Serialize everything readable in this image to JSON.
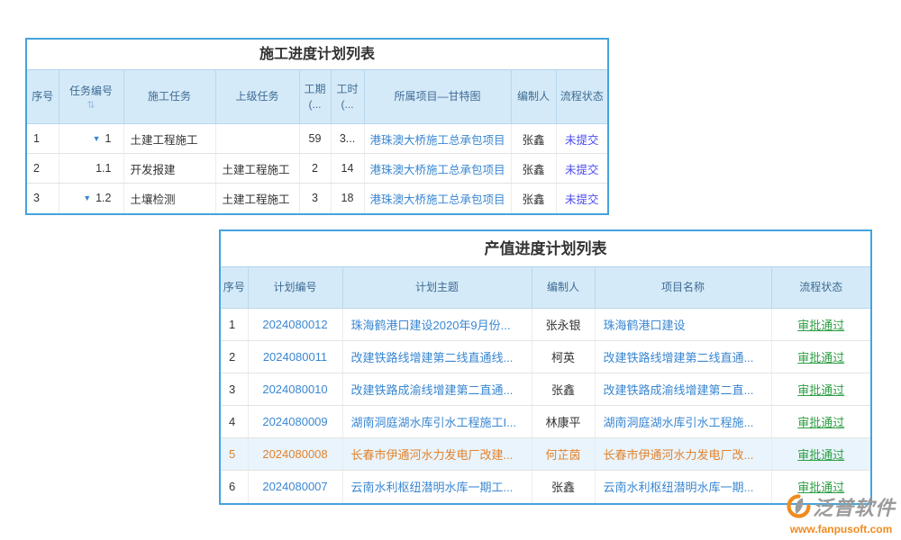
{
  "colors": {
    "border_blue": "#44a3de",
    "header_bg": "#d5eaf8",
    "header_text": "#3e6b94",
    "link_blue": "#3a87d2",
    "status_pending": "#4b4bef",
    "status_approved": "#2d9e43",
    "highlight_orange": "#e2832e",
    "highlight_row_bg": "#e9f4fc",
    "watermark_gray": "#9b9b9b",
    "watermark_orange": "#ef8b1f"
  },
  "icons": {
    "expand_icon": "▼",
    "sort_icon": "⇅"
  },
  "construction_table": {
    "title": "施工进度计划列表",
    "columns": [
      "序号",
      "任务编号",
      "施工任务",
      "上级任务",
      "工期(...",
      "工时(...",
      "所属项目—甘特图",
      "编制人",
      "流程状态"
    ],
    "rows": [
      {
        "seq": "1",
        "task_no": "1",
        "expandable": true,
        "task": "土建工程施工",
        "parent": "",
        "duration": "59",
        "hours": "3...",
        "project": "港珠澳大桥施工总承包项目",
        "author": "张鑫",
        "status": "未提交"
      },
      {
        "seq": "2",
        "task_no": "1.1",
        "expandable": false,
        "task": "开发报建",
        "parent": "土建工程施工",
        "duration": "2",
        "hours": "14",
        "project": "港珠澳大桥施工总承包项目",
        "author": "张鑫",
        "status": "未提交"
      },
      {
        "seq": "3",
        "task_no": "1.2",
        "expandable": true,
        "task": "土壤检测",
        "parent": "土建工程施工",
        "duration": "3",
        "hours": "18",
        "project": "港珠澳大桥施工总承包项目",
        "author": "张鑫",
        "status": "未提交"
      }
    ]
  },
  "output_table": {
    "title": "产值进度计划列表",
    "columns": [
      "序号",
      "计划编号",
      "计划主题",
      "编制人",
      "项目名称",
      "流程状态"
    ],
    "rows": [
      {
        "seq": "1",
        "plan_no": "2024080012",
        "subject": "珠海鹤港口建设2020年9月份...",
        "author": "张永银",
        "project": "珠海鹤港口建设",
        "status": "审批通过",
        "highlight": false
      },
      {
        "seq": "2",
        "plan_no": "2024080011",
        "subject": "改建铁路线增建第二线直通线...",
        "author": "柯英",
        "project": "改建铁路线增建第二线直通...",
        "status": "审批通过",
        "highlight": false
      },
      {
        "seq": "3",
        "plan_no": "2024080010",
        "subject": "改建铁路成渝线增建第二直通...",
        "author": "张鑫",
        "project": "改建铁路成渝线增建第二直...",
        "status": "审批通过",
        "highlight": false
      },
      {
        "seq": "4",
        "plan_no": "2024080009",
        "subject": "湖南洞庭湖水库引水工程施工I...",
        "author": "林康平",
        "project": "湖南洞庭湖水库引水工程施...",
        "status": "审批通过",
        "highlight": false
      },
      {
        "seq": "5",
        "plan_no": "2024080008",
        "subject": "长春市伊通河水力发电厂改建...",
        "author": "何芷茵",
        "project": "长春市伊通河水力发电厂改...",
        "status": "审批通过",
        "highlight": true
      },
      {
        "seq": "6",
        "plan_no": "2024080007",
        "subject": "云南水利枢纽潜明水库一期工...",
        "author": "张鑫",
        "project": "云南水利枢纽潜明水库一期...",
        "status": "审批通过",
        "highlight": false
      }
    ]
  },
  "watermark": {
    "brand_name": "泛普软件",
    "website": "www.fanpusoft.com"
  }
}
